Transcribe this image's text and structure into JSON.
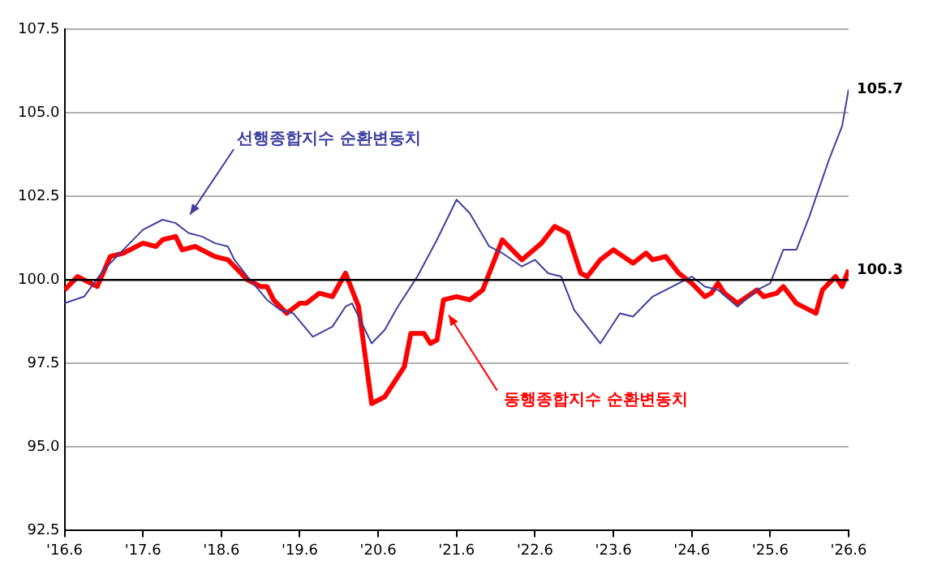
{
  "chart_data": {
    "type": "line",
    "xlim": [
      "2016-06",
      "2026-06"
    ],
    "xticks": [
      {
        "value": "2016-06",
        "label": "'16.6"
      },
      {
        "value": "2017-06",
        "label": "'17.6"
      },
      {
        "value": "2018-06",
        "label": "'18.6"
      },
      {
        "value": "2019-06",
        "label": "'19.6"
      },
      {
        "value": "2020-06",
        "label": "'20.6"
      },
      {
        "value": "2021-06",
        "label": "'21.6"
      },
      {
        "value": "2022-06",
        "label": "'22.6"
      },
      {
        "value": "2023-06",
        "label": "'23.6"
      },
      {
        "value": "2024-06",
        "label": "'24.6"
      },
      {
        "value": "2025-06",
        "label": "'25.6"
      },
      {
        "value": "2026-06",
        "label": "'26.6"
      }
    ],
    "ylim": [
      92.5,
      107.5
    ],
    "yticks": [
      92.5,
      {
        "value": 95,
        "label": "95.0"
      },
      97.5,
      {
        "value": 100,
        "label": "100.0"
      },
      102.5,
      {
        "value": 105,
        "label": "105.0"
      },
      107.5
    ],
    "grid": "y",
    "legend": false,
    "marker": "none",
    "line_style": "solid",
    "ref_lines": [
      {
        "axis": "y",
        "value": 100,
        "label": null,
        "color": "#000000"
      }
    ],
    "annotations": [
      {
        "text": "105.7",
        "x": "2026-06",
        "y": 105.7
      },
      {
        "text": "100.3",
        "x": "2026-06",
        "y": 100.3
      }
    ],
    "series": [
      {
        "name": "선행종합지수 순환변동치",
        "color": "#4040a0",
        "x": [
          "2016-06",
          "2016-09",
          "2016-12",
          "2017-03",
          "2017-06",
          "2017-09",
          "2017-11",
          "2018-01",
          "2018-03",
          "2018-05",
          "2018-07",
          "2018-08",
          "2018-10",
          "2019-01",
          "2019-03",
          "2019-05",
          "2019-08",
          "2019-11",
          "2020-01",
          "2020-02",
          "2020-05",
          "2020-07",
          "2020-09",
          "2020-12",
          "2021-03",
          "2021-06",
          "2021-08",
          "2021-11",
          "2022-01",
          "2022-04",
          "2022-06",
          "2022-08",
          "2022-10",
          "2022-12",
          "2023-02",
          "2023-04",
          "2023-07",
          "2023-09",
          "2023-12",
          "2024-02",
          "2024-04",
          "2024-06",
          "2024-08",
          "2024-10",
          "2025-01",
          "2025-04",
          "2025-06",
          "2025-08",
          "2025-10",
          "2025-12",
          "2026-03",
          "2026-05",
          "2026-06"
        ],
        "values": [
          99.3,
          99.5,
          100.3,
          100.9,
          101.5,
          101.8,
          101.7,
          101.4,
          101.3,
          101.1,
          101.0,
          100.6,
          100.1,
          99.4,
          99.1,
          99.0,
          98.3,
          98.6,
          99.2,
          99.3,
          98.1,
          98.5,
          99.2,
          100.1,
          101.2,
          102.4,
          102.0,
          101.0,
          100.8,
          100.4,
          100.6,
          100.2,
          100.1,
          99.1,
          98.6,
          98.1,
          99.0,
          98.9,
          99.5,
          99.7,
          99.9,
          100.1,
          99.8,
          99.7,
          99.2,
          99.7,
          99.9,
          100.9,
          100.9,
          101.9,
          103.6,
          104.6,
          105.7
        ]
      },
      {
        "name": "동행종합지수 순환변동치",
        "color": "#ff0000",
        "x": [
          "2016-06",
          "2016-08",
          "2016-11",
          "2017-01",
          "2017-03",
          "2017-06",
          "2017-08",
          "2017-09",
          "2017-11",
          "2017-12",
          "2018-02",
          "2018-05",
          "2018-07",
          "2018-10",
          "2018-12",
          "2019-01",
          "2019-02",
          "2019-04",
          "2019-06",
          "2019-07",
          "2019-09",
          "2019-11",
          "2020-01",
          "2020-03",
          "2020-05",
          "2020-07",
          "2020-10",
          "2020-11",
          "2021-01",
          "2021-02",
          "2021-03",
          "2021-04",
          "2021-06",
          "2021-08",
          "2021-10",
          "2021-12",
          "2022-01",
          "2022-02",
          "2022-04",
          "2022-07",
          "2022-09",
          "2022-11",
          "2023-01",
          "2023-02",
          "2023-04",
          "2023-06",
          "2023-09",
          "2023-11",
          "2023-12",
          "2024-02",
          "2024-04",
          "2024-06",
          "2024-08",
          "2024-09",
          "2024-10",
          "2024-11",
          "2025-01",
          "2025-04",
          "2025-05",
          "2025-07",
          "2025-08",
          "2025-10",
          "2026-01",
          "2026-02",
          "2026-04",
          "2026-05",
          "2026-06"
        ],
        "values": [
          99.7,
          100.1,
          99.8,
          100.7,
          100.8,
          101.1,
          101.0,
          101.2,
          101.3,
          100.9,
          101.0,
          100.7,
          100.6,
          100.0,
          99.8,
          99.8,
          99.4,
          99.0,
          99.3,
          99.3,
          99.6,
          99.5,
          100.2,
          99.2,
          96.3,
          96.5,
          97.4,
          98.4,
          98.4,
          98.1,
          98.2,
          99.4,
          99.5,
          99.4,
          99.7,
          100.7,
          101.2,
          101.0,
          100.6,
          101.1,
          101.6,
          101.4,
          100.2,
          100.1,
          100.6,
          100.9,
          100.5,
          100.8,
          100.6,
          100.7,
          100.2,
          99.9,
          99.5,
          99.6,
          99.9,
          99.6,
          99.3,
          99.7,
          99.5,
          99.6,
          99.8,
          99.3,
          99.0,
          99.7,
          100.1,
          99.8,
          100.3
        ]
      }
    ]
  }
}
